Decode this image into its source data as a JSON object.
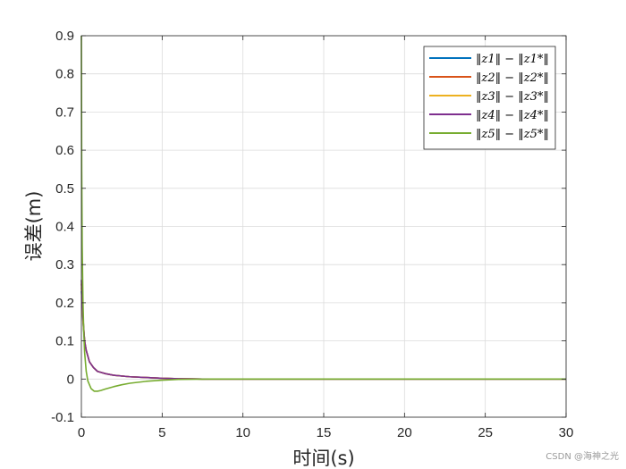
{
  "chart_data": {
    "type": "line",
    "xlabel": "时间(s)",
    "ylabel": "误差(m)",
    "xlim": [
      0,
      30
    ],
    "ylim": [
      -0.1,
      0.9
    ],
    "xticks": [
      "0",
      "5",
      "10",
      "15",
      "20",
      "25",
      "30"
    ],
    "yticks": [
      "-0.1",
      "0",
      "0.1",
      "0.2",
      "0.3",
      "0.4",
      "0.5",
      "0.6",
      "0.7",
      "0.8",
      "0.9"
    ],
    "grid": true,
    "legend_position": "top-right",
    "series": [
      {
        "name": "‖z1‖ − ‖z1*‖",
        "color": "#0072BD",
        "x": [
          0,
          0.05,
          0.1,
          0.2,
          0.3,
          0.5,
          0.75,
          1,
          1.5,
          2,
          3,
          4,
          5,
          6,
          7.5,
          10,
          15,
          20,
          25,
          30
        ],
        "y": [
          0.23,
          0.2,
          0.15,
          0.1,
          0.075,
          0.045,
          0.03,
          0.02,
          0.014,
          0.01,
          0.006,
          0.004,
          0.002,
          0.001,
          0.0,
          0.0,
          0.0,
          0.0,
          0.0,
          0.0
        ]
      },
      {
        "name": "‖z2‖ − ‖z2*‖",
        "color": "#D95319",
        "x": [
          0,
          0.05,
          0.1,
          0.2,
          0.3,
          0.5,
          0.75,
          1,
          1.5,
          2,
          3,
          4,
          5,
          6,
          7.5,
          10,
          15,
          20,
          25,
          30
        ],
        "y": [
          0.25,
          0.21,
          0.16,
          0.1,
          0.075,
          0.045,
          0.03,
          0.02,
          0.014,
          0.01,
          0.006,
          0.004,
          0.002,
          0.001,
          0.0,
          0.0,
          0.0,
          0.0,
          0.0,
          0.0
        ]
      },
      {
        "name": "‖z3‖ − ‖z3*‖",
        "color": "#EDB120",
        "x": [
          0,
          0.05,
          0.1,
          0.2,
          0.3,
          0.5,
          0.75,
          1,
          1.5,
          2,
          3,
          4,
          5,
          6,
          7.5,
          10,
          15,
          20,
          25,
          30
        ],
        "y": [
          0.24,
          0.2,
          0.15,
          0.1,
          0.075,
          0.045,
          0.03,
          0.02,
          0.014,
          0.01,
          0.006,
          0.004,
          0.002,
          0.001,
          0.0,
          0.0,
          0.0,
          0.0,
          0.0,
          0.0
        ]
      },
      {
        "name": "‖z4‖ − ‖z4*‖",
        "color": "#7E2F8E",
        "x": [
          0,
          0.05,
          0.1,
          0.2,
          0.3,
          0.5,
          0.75,
          1,
          1.5,
          2,
          3,
          4,
          5,
          6,
          7.5,
          10,
          15,
          20,
          25,
          30
        ],
        "y": [
          0.26,
          0.21,
          0.16,
          0.1,
          0.075,
          0.045,
          0.03,
          0.02,
          0.014,
          0.01,
          0.006,
          0.004,
          0.002,
          0.001,
          0.0,
          0.0,
          0.0,
          0.0,
          0.0,
          0.0
        ]
      },
      {
        "name": "‖z5‖ − ‖z5*‖",
        "color": "#77AC30",
        "x": [
          0,
          0.02,
          0.05,
          0.1,
          0.15,
          0.2,
          0.3,
          0.4,
          0.6,
          0.8,
          1,
          1.2,
          1.5,
          2,
          2.5,
          3,
          4,
          5,
          6,
          8,
          10,
          15,
          20,
          25,
          30
        ],
        "y": [
          0.9,
          0.55,
          0.35,
          0.2,
          0.12,
          0.07,
          0.02,
          -0.005,
          -0.025,
          -0.032,
          -0.032,
          -0.03,
          -0.026,
          -0.02,
          -0.015,
          -0.011,
          -0.006,
          -0.003,
          -0.001,
          0.0,
          0.0,
          0.0,
          0.0,
          0.0,
          0.0
        ]
      }
    ]
  },
  "watermark": "CSDN @海神之光"
}
